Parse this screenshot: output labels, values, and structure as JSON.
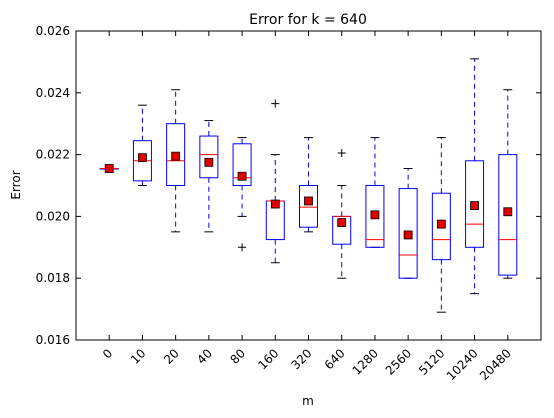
{
  "chart_data": {
    "type": "boxplot",
    "title": "Error for k = 640",
    "xlabel": "m",
    "ylabel": "Error",
    "ylim": [
      0.016,
      0.026
    ],
    "yticks": [
      "0.016",
      "0.018",
      "0.020",
      "0.022",
      "0.024",
      "0.026"
    ],
    "categories": [
      "0",
      "10",
      "20",
      "40",
      "80",
      "160",
      "320",
      "640",
      "1280",
      "2560",
      "5120",
      "10240",
      "20480"
    ],
    "grid": false,
    "colors": {
      "box": "#0000ff",
      "median": "#ff0000",
      "mean": "#e00000",
      "whisker": "#0000ff"
    },
    "series": [
      {
        "category": "0",
        "whisker_low": 0.02155,
        "q1": 0.02155,
        "median": 0.02155,
        "q3": 0.02155,
        "whisker_high": 0.02155,
        "mean": 0.02155,
        "outliers": []
      },
      {
        "category": "10",
        "whisker_low": 0.021,
        "q1": 0.02115,
        "median": 0.0218,
        "q3": 0.02245,
        "whisker_high": 0.0236,
        "mean": 0.0219,
        "outliers": []
      },
      {
        "category": "20",
        "whisker_low": 0.0195,
        "q1": 0.021,
        "median": 0.0218,
        "q3": 0.023,
        "whisker_high": 0.0241,
        "mean": 0.02195,
        "outliers": []
      },
      {
        "category": "40",
        "whisker_low": 0.0195,
        "q1": 0.02125,
        "median": 0.022,
        "q3": 0.0226,
        "whisker_high": 0.0231,
        "mean": 0.02175,
        "outliers": []
      },
      {
        "category": "80",
        "whisker_low": 0.02,
        "q1": 0.021,
        "median": 0.02125,
        "q3": 0.02235,
        "whisker_high": 0.02255,
        "mean": 0.0213,
        "outliers": [
          0.019
        ]
      },
      {
        "category": "160",
        "whisker_low": 0.0185,
        "q1": 0.01925,
        "median": 0.0205,
        "q3": 0.0205,
        "whisker_high": 0.022,
        "mean": 0.0204,
        "outliers": [
          0.02365
        ]
      },
      {
        "category": "320",
        "whisker_low": 0.0195,
        "q1": 0.01965,
        "median": 0.0203,
        "q3": 0.021,
        "whisker_high": 0.02255,
        "mean": 0.0205,
        "outliers": []
      },
      {
        "category": "640",
        "whisker_low": 0.018,
        "q1": 0.0191,
        "median": 0.02,
        "q3": 0.02,
        "whisker_high": 0.021,
        "mean": 0.0198,
        "outliers": [
          0.02205
        ]
      },
      {
        "category": "1280",
        "whisker_low": 0.019,
        "q1": 0.019,
        "median": 0.01925,
        "q3": 0.021,
        "whisker_high": 0.02255,
        "mean": 0.02005,
        "outliers": []
      },
      {
        "category": "2560",
        "whisker_low": 0.018,
        "q1": 0.018,
        "median": 0.01875,
        "q3": 0.0209,
        "whisker_high": 0.02155,
        "mean": 0.0194,
        "outliers": []
      },
      {
        "category": "5120",
        "whisker_low": 0.0169,
        "q1": 0.0186,
        "median": 0.01925,
        "q3": 0.02075,
        "whisker_high": 0.02255,
        "mean": 0.01975,
        "outliers": []
      },
      {
        "category": "10240",
        "whisker_low": 0.0175,
        "q1": 0.019,
        "median": 0.01975,
        "q3": 0.0218,
        "whisker_high": 0.0251,
        "mean": 0.02035,
        "outliers": []
      },
      {
        "category": "20480",
        "whisker_low": 0.018,
        "q1": 0.0181,
        "median": 0.01925,
        "q3": 0.022,
        "whisker_high": 0.0241,
        "mean": 0.02015,
        "outliers": []
      }
    ]
  }
}
